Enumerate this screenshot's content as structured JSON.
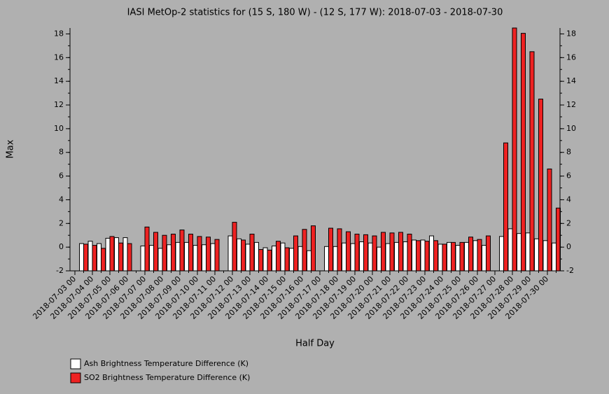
{
  "chart_data": {
    "type": "bar",
    "title": "IASI MetOp-2 statistics for (15 S, 180 W) - (12 S, 177 W): 2018-07-03 - 2018-07-30",
    "xlabel": "Half Day",
    "ylabel": "Max",
    "categories": [
      "2018-07-03 00",
      null,
      "2018-07-04 00",
      null,
      "2018-07-05 00",
      null,
      "2018-07-06 00",
      null,
      "2018-07-07 00",
      null,
      "2018-07-08 00",
      null,
      "2018-07-09 00",
      null,
      "2018-07-10 00",
      null,
      "2018-07-11 00",
      null,
      "2018-07-12 00",
      null,
      "2018-07-13 00",
      null,
      "2018-07-14 00",
      null,
      "2018-07-15 00",
      null,
      "2018-07-16 00",
      null,
      "2018-07-17 00",
      null,
      "2018-07-18 00",
      null,
      "2018-07-19 00",
      null,
      "2018-07-20 00",
      null,
      "2018-07-21 00",
      null,
      "2018-07-22 00",
      null,
      "2018-07-23 00",
      null,
      "2018-07-24 00",
      null,
      "2018-07-25 00",
      null,
      "2018-07-26 00",
      null,
      "2018-07-27 00",
      null,
      "2018-07-28 00",
      null,
      "2018-07-29 00",
      null,
      "2018-07-30 00",
      null
    ],
    "series": [
      {
        "name": "Ash Brightness Temperature Difference (K)",
        "color": "#ffffff",
        "values": [
          null,
          0.3,
          0.5,
          0.3,
          0.75,
          0.8,
          0.8,
          null,
          0.1,
          0.15,
          -0.1,
          0.2,
          0.4,
          0.4,
          0.15,
          0.2,
          0.3,
          null,
          0.95,
          0.7,
          0.25,
          0.4,
          -0.05,
          0.1,
          0.35,
          -0.1,
          0.05,
          -0.3,
          null,
          0.05,
          0.05,
          0.35,
          0.3,
          0.45,
          0.35,
          0,
          0.3,
          0.4,
          0.45,
          0.6,
          0.6,
          0.95,
          0.25,
          0.4,
          0.15,
          0.4,
          0.55,
          0.15,
          null,
          0.9,
          1.55,
          1.15,
          1.2,
          0.7,
          0.55,
          0.35
        ]
      },
      {
        "name": "SO2 Brightness Temperature Difference (K)",
        "color": "#ee2222",
        "values": [
          null,
          0.25,
          0.15,
          -0.1,
          0.9,
          0.35,
          0.3,
          null,
          1.7,
          1.25,
          1.0,
          1.1,
          1.45,
          1.1,
          0.9,
          0.85,
          0.65,
          null,
          2.1,
          0.6,
          1.1,
          -0.2,
          -0.25,
          0.5,
          -0.05,
          0.95,
          1.5,
          1.8,
          null,
          1.6,
          1.55,
          1.3,
          1.1,
          1.05,
          0.95,
          1.25,
          1.2,
          1.25,
          1.1,
          0.55,
          0.5,
          0.55,
          0.25,
          0.4,
          0.4,
          0.85,
          0.65,
          0.95,
          null,
          8.8,
          18.5,
          18.05,
          16.5,
          12.5,
          6.6,
          3.3
        ]
      }
    ],
    "ylim": [
      -2,
      18.5
    ],
    "yticks": [
      -2,
      0,
      2,
      4,
      6,
      8,
      10,
      12,
      14,
      16,
      18
    ]
  }
}
